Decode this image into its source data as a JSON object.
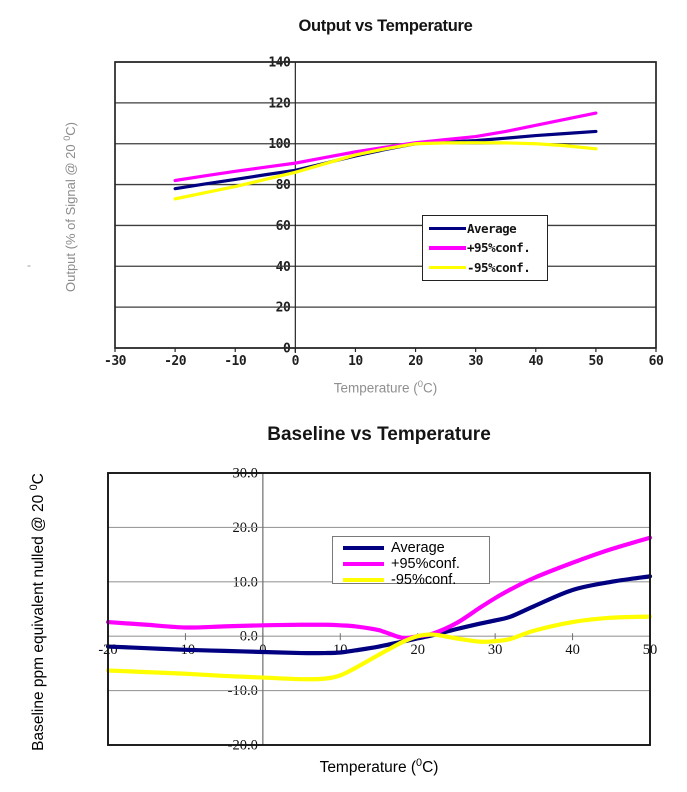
{
  "misc": {
    "stray_dash": "-"
  },
  "chart_data": [
    {
      "type": "line",
      "title": "Output vs Temperature",
      "xlabel": {
        "pre": "Temperature (",
        "sup": "0",
        "post": "C)"
      },
      "ylabel": {
        "pre": "Output (% of Signal @ 20 ",
        "sup": "0",
        "post": "C)"
      },
      "xlim": [
        -30,
        60
      ],
      "ylim": [
        0,
        140
      ],
      "xticks": [
        -30,
        -20,
        -10,
        0,
        10,
        20,
        30,
        40,
        50,
        60
      ],
      "xtick_labels": [
        "-30",
        "-20",
        "-10",
        "0",
        "10",
        "20",
        "30",
        "40",
        "50",
        "60"
      ],
      "yticks": [
        0,
        20,
        40,
        60,
        80,
        100,
        120,
        140
      ],
      "ytick_labels": [
        "0",
        "20",
        "40",
        "60",
        "80",
        "100",
        "120",
        "140"
      ],
      "value_axis_at_x": 0,
      "grid": "horizontal",
      "legend_position": "inside-right-middle",
      "x": [
        -20,
        -15,
        -10,
        -5,
        0,
        5,
        10,
        15,
        20,
        25,
        30,
        35,
        40,
        45,
        50
      ],
      "series": [
        {
          "name": "Average",
          "color": "#000080",
          "values": [
            78,
            80.3,
            82.5,
            84.8,
            87,
            90.5,
            94,
            97.2,
            100,
            100.8,
            101.5,
            102.7,
            104,
            105,
            106
          ]
        },
        {
          "name": "+95%conf.",
          "color": "#ff00ff",
          "values": [
            82,
            84.3,
            86.5,
            88.5,
            90.5,
            93.3,
            96,
            98.3,
            100.5,
            102,
            103.5,
            106,
            109,
            112,
            115
          ]
        },
        {
          "name": "-95%conf.",
          "color": "#ffff00",
          "values": [
            73,
            76,
            79,
            82.5,
            86,
            90.3,
            94.5,
            97.5,
            100,
            100.4,
            100.5,
            100.4,
            100,
            99,
            97.5
          ]
        }
      ]
    },
    {
      "type": "line",
      "title": "Baseline vs Temperature",
      "xlabel": {
        "pre": "Temperature (",
        "sup": "0",
        "post": "C)"
      },
      "ylabel": {
        "pre": "Baseline ppm equivalent nulled @ 20 ",
        "sup": "0",
        "post": "C"
      },
      "xlim": [
        -20,
        50
      ],
      "ylim": [
        -20,
        30
      ],
      "xticks": [
        -20,
        -10,
        0,
        10,
        20,
        30,
        40,
        50
      ],
      "xtick_labels": [
        "-20",
        "-10",
        "0",
        "10",
        "20",
        "30",
        "40",
        "50"
      ],
      "yticks": [
        -20,
        -10,
        0,
        10,
        20,
        30
      ],
      "ytick_labels": [
        "-20.0",
        "-10.0",
        "0.0",
        "10.0",
        "20.0",
        "30.0"
      ],
      "value_axis_at_x": 0,
      "grid": "horizontal",
      "legend_position": "inside-top-center",
      "x": [
        -20,
        -15,
        -10,
        -5,
        0,
        5,
        8,
        10,
        12,
        15,
        18,
        20,
        22,
        25,
        28,
        30,
        32,
        35,
        40,
        45,
        50
      ],
      "series": [
        {
          "name": "Average",
          "color": "#000080",
          "values": [
            -1.9,
            -2.2,
            -2.5,
            -2.7,
            -2.9,
            -3.1,
            -3.1,
            -3.0,
            -2.6,
            -1.9,
            -1.0,
            -0.4,
            0.2,
            1.3,
            2.3,
            2.9,
            3.6,
            5.5,
            8.5,
            10,
            11
          ]
        },
        {
          "name": "+95%conf.",
          "color": "#ff00ff",
          "values": [
            2.6,
            2.1,
            1.6,
            1.8,
            2.0,
            2.1,
            2.1,
            2.0,
            1.8,
            1.1,
            -0.3,
            0.0,
            0.5,
            2.4,
            5.2,
            7.0,
            8.6,
            10.7,
            13.5,
            16,
            18.1
          ]
        },
        {
          "name": "-95%conf.",
          "color": "#ffff00",
          "values": [
            -6.3,
            -6.6,
            -6.9,
            -7.3,
            -7.6,
            -7.9,
            -7.8,
            -7.2,
            -5.8,
            -3.4,
            -1.1,
            0.0,
            0.3,
            -0.4,
            -1.0,
            -0.9,
            -0.5,
            1.0,
            2.6,
            3.4,
            3.6
          ]
        }
      ]
    }
  ]
}
